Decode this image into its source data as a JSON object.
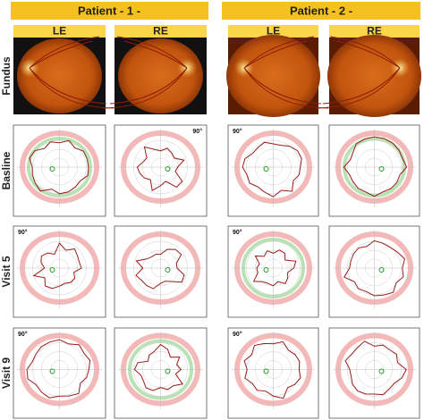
{
  "patients": [
    {
      "title": "Patient - 1 -",
      "eyes": [
        "LE",
        "RE"
      ]
    },
    {
      "title": "Patient - 2 -",
      "eyes": [
        "LE",
        "RE"
      ]
    }
  ],
  "fundus_row": {
    "label": "Fundus"
  },
  "plot_rows": [
    {
      "label": "Basline",
      "panels": [
        {},
        {
          "corner": "90°"
        },
        {
          "corner": "90°"
        },
        {}
      ]
    },
    {
      "label": "Visit 5",
      "panels": [
        {
          "corner": "90°"
        },
        {},
        {
          "corner": "90°"
        },
        {}
      ]
    },
    {
      "label": "Visit 9",
      "panels": [
        {
          "corner": "90°"
        },
        {},
        {
          "corner": "90°"
        },
        {}
      ]
    }
  ]
}
